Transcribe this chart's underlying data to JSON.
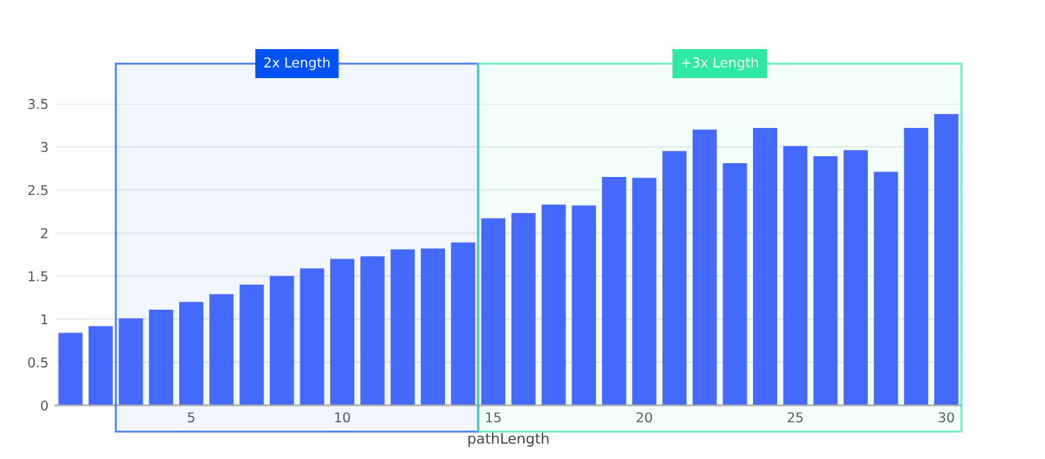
{
  "chart_data": {
    "type": "bar",
    "xlabel": "pathLength",
    "x": [
      1,
      2,
      3,
      4,
      5,
      6,
      7,
      8,
      9,
      10,
      11,
      12,
      13,
      14,
      15,
      16,
      17,
      18,
      19,
      20,
      21,
      22,
      23,
      24,
      25,
      26,
      27,
      28,
      29,
      30
    ],
    "values": [
      0.84,
      0.92,
      1.01,
      1.11,
      1.2,
      1.29,
      1.4,
      1.5,
      1.59,
      1.7,
      1.73,
      1.81,
      1.82,
      1.89,
      2.17,
      2.23,
      2.33,
      2.32,
      2.65,
      2.64,
      2.95,
      3.2,
      2.81,
      3.22,
      3.01,
      2.89,
      2.96,
      2.71,
      3.22,
      3.38
    ],
    "color": "#4469fb",
    "xlim": [
      0.5,
      30.5
    ],
    "xticks": [
      5,
      10,
      15,
      20,
      25,
      30
    ],
    "ylim": [
      0,
      3.5
    ],
    "yticks": [
      0,
      0.5,
      1,
      1.5,
      2,
      2.5,
      3,
      3.5
    ],
    "grid": "y",
    "bands": [
      {
        "axis": "x",
        "from": 2.5,
        "to": 14.5,
        "label": "2x Length",
        "color": "#0052f5"
      },
      {
        "axis": "x",
        "from": 14.5,
        "to": 30.5,
        "label": "+3x Length",
        "color": "#2fe8a3"
      }
    ]
  }
}
